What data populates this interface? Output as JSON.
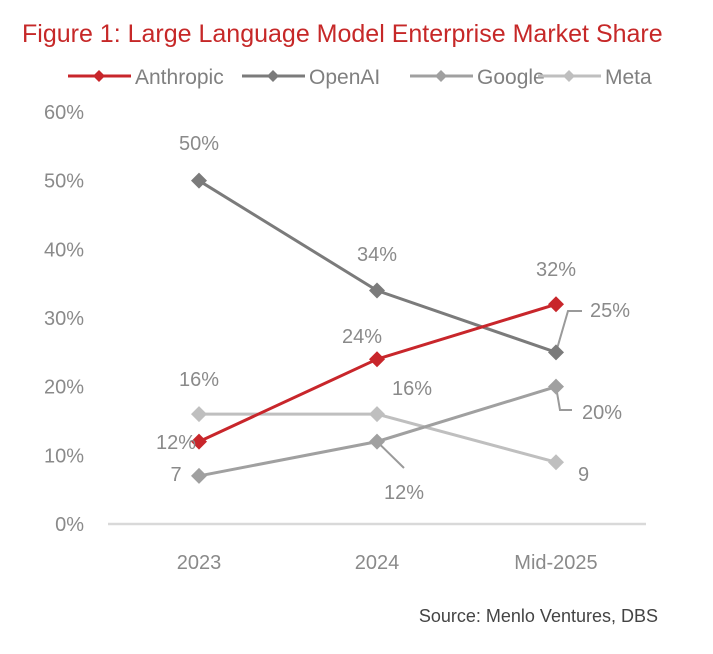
{
  "chart_data": {
    "type": "line",
    "title": "Figure 1: Large Language Model Enterprise Market Share",
    "xlabel": "",
    "ylabel": "",
    "categories": [
      "2023",
      "2024",
      "Mid-2025"
    ],
    "ylim": [
      0,
      60
    ],
    "yticks": [
      0,
      10,
      20,
      30,
      40,
      50,
      60
    ],
    "ytick_labels": [
      "0%",
      "10%",
      "20%",
      "30%",
      "40%",
      "50%",
      "60%"
    ],
    "grid": false,
    "legend_position": "top",
    "series": [
      {
        "name": "Anthropic",
        "color": "#c8262b",
        "values": [
          12,
          24,
          32
        ],
        "labels": [
          "12%",
          "24%",
          "32%"
        ]
      },
      {
        "name": "OpenAI",
        "color": "#7b7b7b",
        "values": [
          50,
          34,
          25
        ],
        "labels": [
          "50%",
          "34%",
          "25%"
        ]
      },
      {
        "name": "Google",
        "color": "#a0a0a0",
        "values": [
          7,
          12,
          20
        ],
        "labels": [
          "7",
          "12%",
          "20%"
        ]
      },
      {
        "name": "Meta",
        "color": "#bfbfbf",
        "values": [
          16,
          16,
          9
        ],
        "labels": [
          "16%",
          "16%",
          "9"
        ]
      }
    ],
    "source": "Source:  Menlo Ventures, DBS"
  }
}
